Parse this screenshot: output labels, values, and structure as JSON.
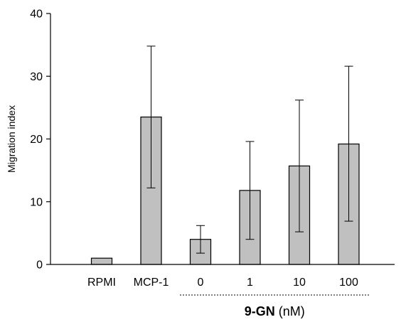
{
  "chart_data": {
    "type": "bar",
    "categories": [
      "RPMI",
      "MCP-1",
      "0",
      "1",
      "10",
      "100"
    ],
    "values": [
      1.0,
      23.5,
      4.0,
      11.8,
      15.7,
      19.2
    ],
    "error_low": [
      null,
      12.2,
      1.8,
      4.0,
      5.2,
      6.9
    ],
    "error_high": [
      null,
      34.8,
      6.2,
      19.6,
      26.2,
      31.6
    ],
    "ylabel": "Migration index",
    "ylim": [
      0,
      40
    ],
    "yticks": [
      "0",
      "10",
      "20",
      "30",
      "40"
    ],
    "group_label": {
      "bold": "9-GN",
      "normal": " (nM)",
      "spans_categories": [
        "0",
        "1",
        "10",
        "100"
      ]
    },
    "bar_color": "#c0c0c0",
    "grid": false
  }
}
